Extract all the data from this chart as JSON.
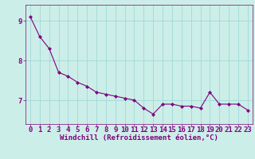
{
  "x": [
    0,
    1,
    2,
    3,
    4,
    5,
    6,
    7,
    8,
    9,
    10,
    11,
    12,
    13,
    14,
    15,
    16,
    17,
    18,
    19,
    20,
    21,
    22,
    23
  ],
  "y": [
    9.1,
    8.6,
    8.3,
    7.7,
    7.6,
    7.45,
    7.35,
    7.2,
    7.15,
    7.1,
    7.05,
    7.0,
    6.8,
    6.65,
    6.9,
    6.9,
    6.85,
    6.85,
    6.8,
    7.2,
    6.9,
    6.9,
    6.9,
    6.75
  ],
  "line_color": "#800080",
  "marker": "D",
  "marker_size": 2,
  "xlabel": "Windchill (Refroidissement éolien,°C)",
  "ylabel": "",
  "xlim": [
    -0.5,
    23.5
  ],
  "ylim": [
    6.4,
    9.4
  ],
  "yticks": [
    7,
    8,
    9
  ],
  "xticks": [
    0,
    1,
    2,
    3,
    4,
    5,
    6,
    7,
    8,
    9,
    10,
    11,
    12,
    13,
    14,
    15,
    16,
    17,
    18,
    19,
    20,
    21,
    22,
    23
  ],
  "grid_color": "#a0d8d8",
  "bg_color": "#cceee8",
  "tick_color": "#800080",
  "xlabel_color": "#800080",
  "xlabel_fontsize": 6.5,
  "tick_fontsize": 6.5,
  "line_width": 0.8
}
